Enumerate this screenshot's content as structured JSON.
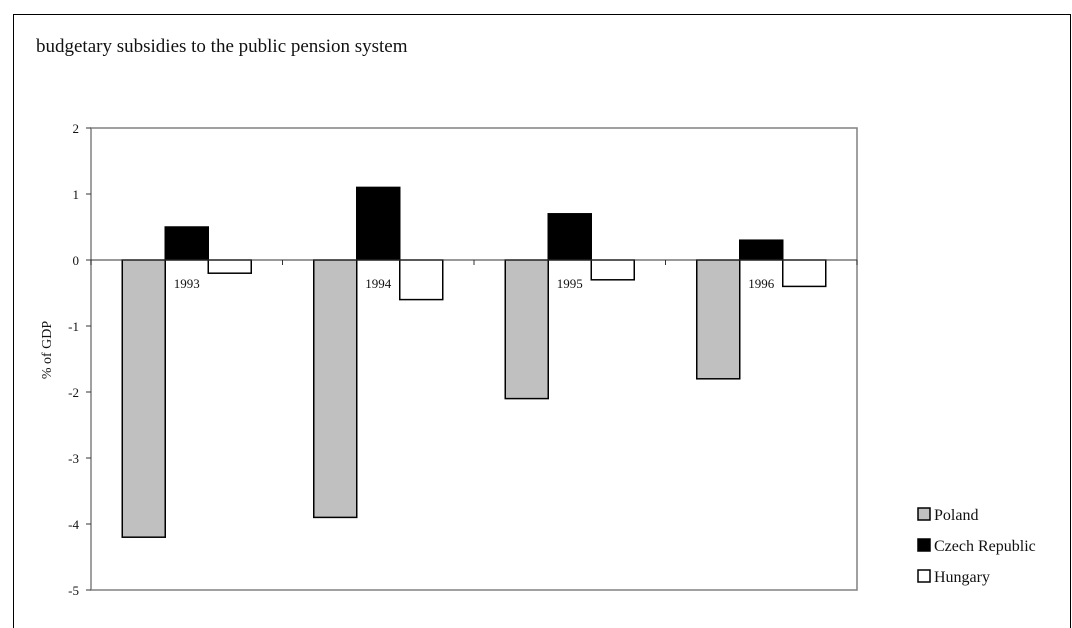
{
  "chart_data": {
    "type": "bar",
    "title": "budgetary subsidies to the public pension system",
    "xlabel": "",
    "ylabel": "% of GDP",
    "categories": [
      "1993",
      "1994",
      "1995",
      "1996"
    ],
    "series": [
      {
        "name": "Poland",
        "color": "#c0c0c0",
        "values": [
          -4.2,
          -3.9,
          -2.1,
          -1.8
        ]
      },
      {
        "name": "Czech Republic",
        "color": "#000000",
        "values": [
          0.5,
          1.1,
          0.7,
          0.3
        ]
      },
      {
        "name": "Hungary",
        "color": "#ffffff",
        "values": [
          -0.2,
          -0.6,
          -0.3,
          -0.4
        ]
      }
    ],
    "ylim": [
      -5,
      2
    ],
    "yticks": [
      "2",
      "1",
      "0",
      "-1",
      "-2",
      "-3",
      "-4",
      "-5"
    ],
    "grid": false,
    "legend_position": "bottom-right"
  }
}
